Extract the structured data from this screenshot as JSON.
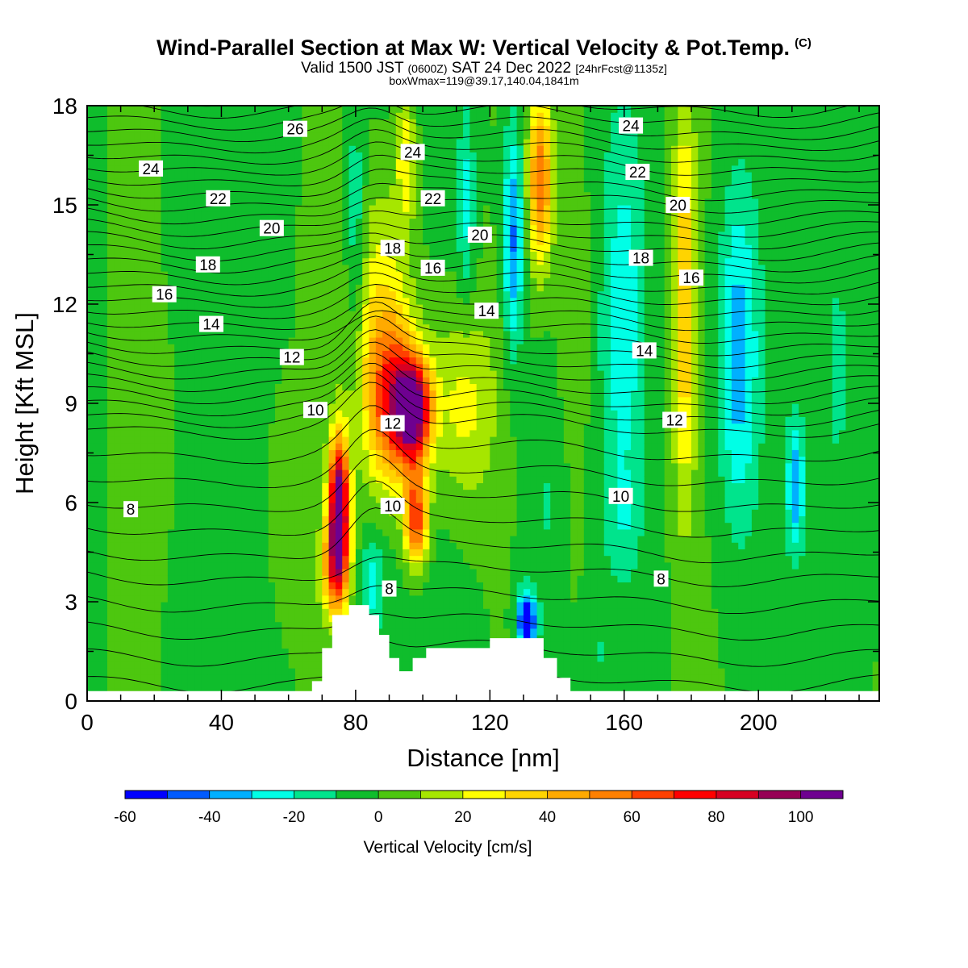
{
  "header": {
    "title": "Wind-Parallel Section at Max W: Vertical Velocity & Pot.Temp.",
    "copyright": "(C)",
    "valid_main": "Valid 1500 JST",
    "valid_utc": "(0600Z)",
    "valid_date": "SAT 24 Dec 2022",
    "forecast": "[24hrFcst@1135z]",
    "boxwmax": "boxWmax=119@39.17,140.04,1841m"
  },
  "chart_data": {
    "type": "heatmap",
    "xlabel": "Distance [nm]",
    "ylabel": "Height [Kft MSL]",
    "xlim": [
      0,
      236
    ],
    "ylim": [
      0,
      18
    ],
    "x_ticks": [
      0,
      40,
      80,
      120,
      160,
      200
    ],
    "y_ticks": [
      0,
      3,
      6,
      9,
      12,
      15,
      18
    ],
    "colorbar": {
      "title": "Vertical Velocity [cm/s]",
      "range": [
        -60,
        110
      ],
      "labels": [
        -60,
        -40,
        -20,
        0,
        20,
        40,
        60,
        80,
        100
      ],
      "colors": [
        "#0000ff",
        "#005bff",
        "#00b0ff",
        "#00ffe6",
        "#00e48c",
        "#0fbd2c",
        "#4dc70f",
        "#a6e600",
        "#ffff00",
        "#ffd400",
        "#ffaa00",
        "#ff8000",
        "#ff4000",
        "#ff0000",
        "#d70022",
        "#960055",
        "#6e0090"
      ]
    },
    "field_peaks": [
      {
        "x": 75,
        "y": 6.0,
        "w": 112
      },
      {
        "x": 97,
        "y": 8.8,
        "w": 108
      },
      {
        "x": 98,
        "y": 5.5,
        "w": 80
      },
      {
        "x": 131,
        "y": 2.4,
        "w": -58
      },
      {
        "x": 127,
        "y": 14.5,
        "w": -35
      },
      {
        "x": 160,
        "y": 11.5,
        "w": -22
      },
      {
        "x": 194,
        "y": 10.8,
        "w": -35
      },
      {
        "x": 211,
        "y": 6.5,
        "w": -30
      },
      {
        "x": 178,
        "y": 12.5,
        "w": 40
      },
      {
        "x": 135,
        "y": 15.5,
        "w": 60
      }
    ],
    "terrain": [
      [
        67,
        0.6
      ],
      [
        70,
        1.6
      ],
      [
        73,
        2.6
      ],
      [
        78,
        2.9
      ],
      [
        84,
        2.6
      ],
      [
        87,
        2.0
      ],
      [
        90,
        1.3
      ],
      [
        93,
        0.9
      ],
      [
        97,
        1.3
      ],
      [
        101,
        1.6
      ],
      [
        110,
        1.6
      ],
      [
        120,
        1.9
      ],
      [
        132,
        1.9
      ],
      [
        136,
        1.3
      ],
      [
        140,
        0.7
      ],
      [
        144,
        0.3
      ]
    ],
    "contour_labels": [
      {
        "text": "26",
        "x": 62,
        "y": 17.3
      },
      {
        "text": "24",
        "x": 19,
        "y": 16.1
      },
      {
        "text": "22",
        "x": 39,
        "y": 15.2
      },
      {
        "text": "20",
        "x": 55,
        "y": 14.3
      },
      {
        "text": "18",
        "x": 36,
        "y": 13.2
      },
      {
        "text": "16",
        "x": 23,
        "y": 12.3
      },
      {
        "text": "14",
        "x": 37,
        "y": 11.4
      },
      {
        "text": "12",
        "x": 61,
        "y": 10.4
      },
      {
        "text": "10",
        "x": 68,
        "y": 8.8
      },
      {
        "text": "8",
        "x": 13,
        "y": 5.8
      },
      {
        "text": "24",
        "x": 97,
        "y": 16.6
      },
      {
        "text": "22",
        "x": 103,
        "y": 15.2
      },
      {
        "text": "20",
        "x": 117,
        "y": 14.1
      },
      {
        "text": "18",
        "x": 91,
        "y": 13.7
      },
      {
        "text": "16",
        "x": 103,
        "y": 13.1
      },
      {
        "text": "14",
        "x": 119,
        "y": 11.8
      },
      {
        "text": "12",
        "x": 91,
        "y": 8.4
      },
      {
        "text": "10",
        "x": 91,
        "y": 5.9
      },
      {
        "text": "8",
        "x": 90,
        "y": 3.4
      },
      {
        "text": "24",
        "x": 162,
        "y": 17.4
      },
      {
        "text": "22",
        "x": 164,
        "y": 16.0
      },
      {
        "text": "20",
        "x": 176,
        "y": 15.0
      },
      {
        "text": "18",
        "x": 165,
        "y": 13.4
      },
      {
        "text": "16",
        "x": 180,
        "y": 12.8
      },
      {
        "text": "14",
        "x": 166,
        "y": 10.6
      },
      {
        "text": "12",
        "x": 175,
        "y": 8.5
      },
      {
        "text": "10",
        "x": 159,
        "y": 6.2
      },
      {
        "text": "8",
        "x": 171,
        "y": 3.7
      }
    ]
  }
}
